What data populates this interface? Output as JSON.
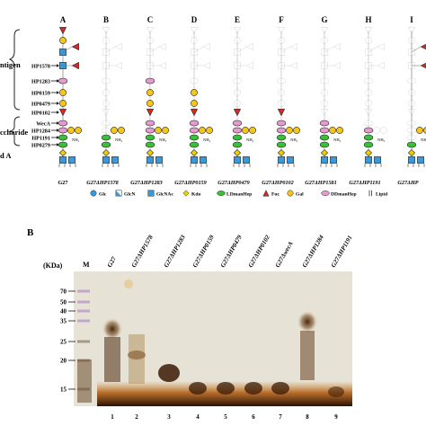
{
  "panel_a": {
    "lane_letters": [
      "A",
      "B",
      "C",
      "D",
      "E",
      "F",
      "G",
      "H",
      "I"
    ],
    "region_labels": {
      "o_antigen": "ntigen",
      "core": "ccharide",
      "lipid_a": "d A"
    },
    "gene_labels": [
      "HP1578",
      "HP1283",
      "HP0159",
      "HP0479",
      "HP0102",
      "WecA",
      "HP1284",
      "HP1191",
      "HP0279"
    ],
    "strain_labels": [
      "G27",
      "G27ΔHP1578",
      "G27ΔHP1283",
      "G27ΔHP0159",
      "G27ΔHP0479",
      "G27ΔHP0102",
      "G27ΔHP1581",
      "G27ΔHP1191",
      "G27ΔHP"
    ],
    "nh2_label": "NH₂",
    "legend": [
      {
        "label": "Glc",
        "shape": "circle",
        "color": "#3a9ad9"
      },
      {
        "label": "GlcN",
        "shape": "halfsquare",
        "color": "#3a9ad9"
      },
      {
        "label": "GlcNAc",
        "shape": "square",
        "color": "#3a9ad9"
      },
      {
        "label": "Kdo",
        "shape": "diamond",
        "color": "#f0d000"
      },
      {
        "label": "LDmanHep",
        "shape": "hexagon",
        "color": "#3bbf3b"
      },
      {
        "label": "Fuc",
        "shape": "triangle",
        "color": "#d62828"
      },
      {
        "label": "Gal",
        "shape": "circle",
        "color": "#f6c517"
      },
      {
        "label": "DDmanHep",
        "shape": "hexagon",
        "color": "#e59ad0"
      },
      {
        "label": "Lipid",
        "shape": "lipid",
        "color": "#333333"
      }
    ]
  },
  "panel_b": {
    "letter": "B",
    "unit_label": "(KDa)",
    "marker_label": "M",
    "marker_kda": [
      "70",
      "50",
      "40",
      "35",
      "25",
      "20",
      "15"
    ],
    "lane_headers": [
      "G27",
      "G27ΔHP1578",
      "G27ΔHP1283",
      "G27ΔHP0159",
      "G27ΔHP0479",
      "G27ΔHP0102",
      "G27ΔwecA",
      "G27ΔHP1284",
      "G27ΔHP1191"
    ],
    "lane_numbers": [
      "1",
      "2",
      "3",
      "4",
      "5",
      "6",
      "7",
      "8",
      "9"
    ]
  },
  "colors": {
    "glc": "#3a9ad9",
    "kdo": "#f0d000",
    "ldmanhep": "#3bbf3b",
    "fuc": "#d62828",
    "gal": "#f6c517",
    "ddmanhep": "#e59ad0",
    "gel_bg": "#e9e6dc",
    "band_dark": "#3b1d05"
  }
}
